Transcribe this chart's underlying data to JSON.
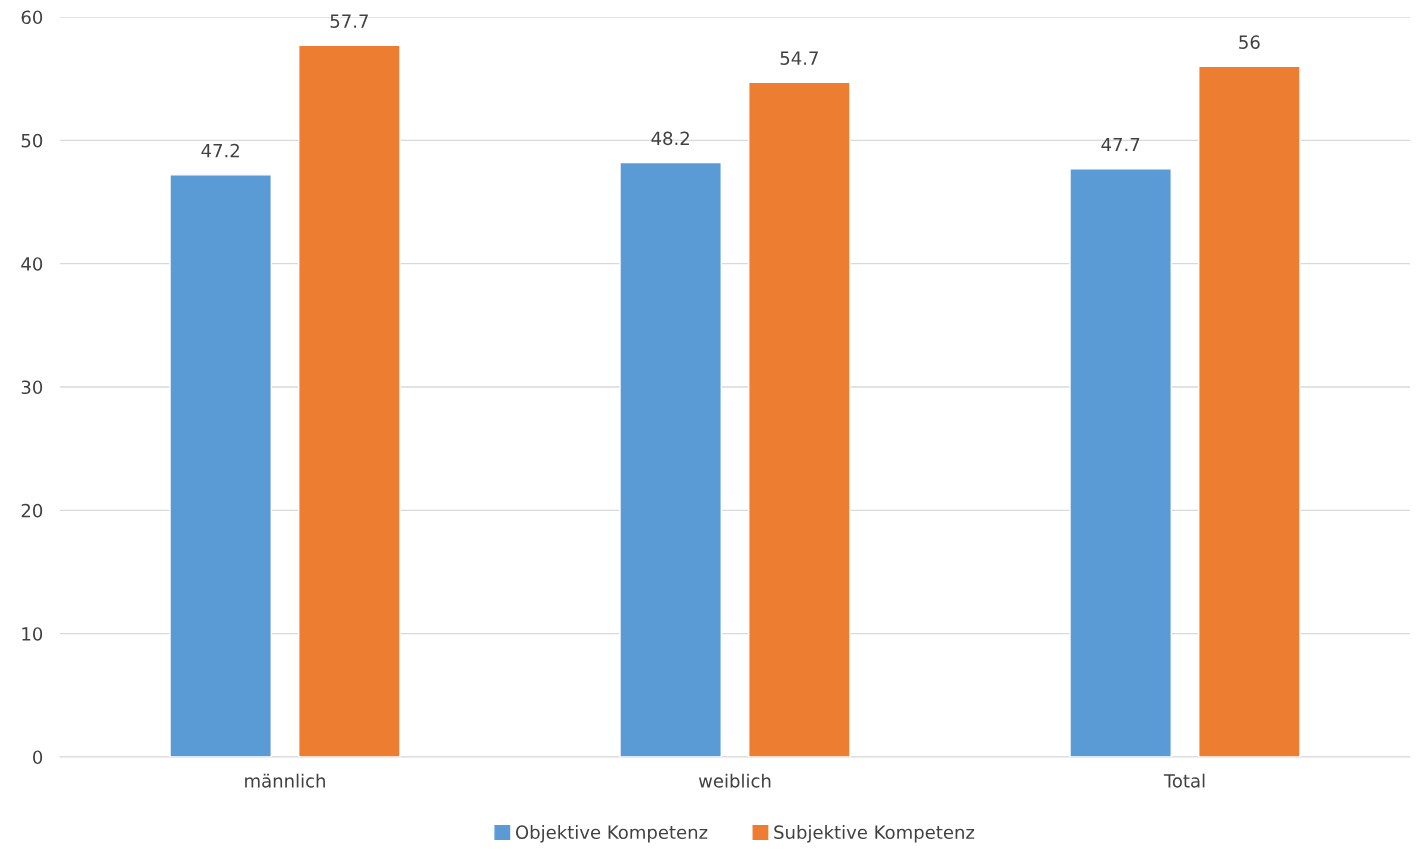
{
  "chart_data": {
    "type": "bar",
    "categories": [
      "männlich",
      "weiblich",
      "Total"
    ],
    "series": [
      {
        "name": "Objektive Kompetenz",
        "color": "#5b9bd5",
        "values": [
          47.2,
          48.2,
          47.7
        ]
      },
      {
        "name": "Subjektive Kompetenz",
        "color": "#ed7d31",
        "values": [
          57.7,
          54.7,
          56
        ]
      }
    ],
    "ylim": [
      0,
      60
    ],
    "yticks": [
      0,
      10,
      20,
      30,
      40,
      50,
      60
    ],
    "grid": "y",
    "legend": "bottom",
    "data_labels": true
  }
}
